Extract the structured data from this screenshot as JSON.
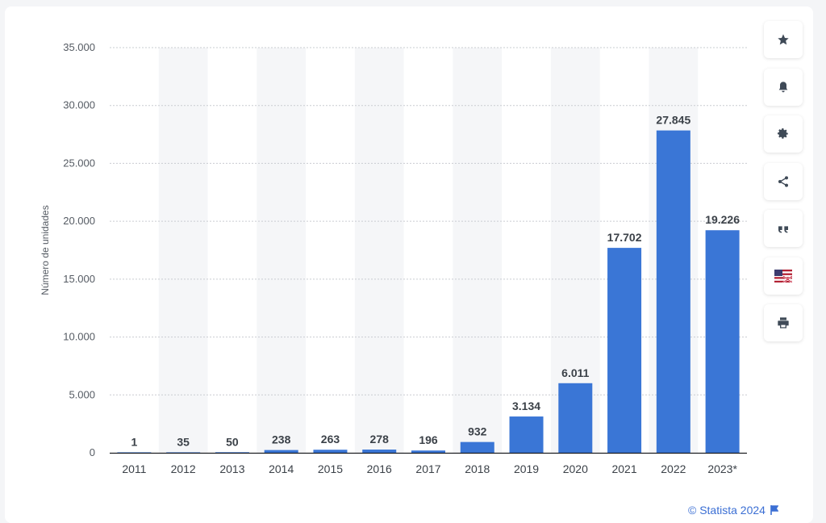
{
  "chart_data": {
    "type": "bar",
    "categories": [
      "2011",
      "2012",
      "2013",
      "2014",
      "2015",
      "2016",
      "2017",
      "2018",
      "2019",
      "2020",
      "2021",
      "2022",
      "2023*"
    ],
    "values": [
      1,
      35,
      50,
      238,
      263,
      278,
      196,
      932,
      3134,
      6011,
      17702,
      27845,
      19226
    ],
    "value_labels": [
      "1",
      "35",
      "50",
      "238",
      "263",
      "278",
      "196",
      "932",
      "3.134",
      "6.011",
      "17.702",
      "27.845",
      "19.226"
    ],
    "ylabel": "Número de unidades",
    "ylim": [
      0,
      35000
    ],
    "yticks": [
      0,
      5000,
      10000,
      15000,
      20000,
      25000,
      30000,
      35000
    ],
    "ytick_labels": [
      "0",
      "5.000",
      "10.000",
      "15.000",
      "20.000",
      "25.000",
      "30.000",
      "35.000"
    ],
    "grid": true,
    "colors": {
      "bar": "#3a76d6",
      "band": "#f5f6f8",
      "grid": "#c9ccd1"
    }
  },
  "toolbar": {
    "icons": [
      "star-icon",
      "bell-icon",
      "gear-icon",
      "share-icon",
      "quote-icon",
      "flag-icon",
      "print-icon"
    ]
  },
  "footer": {
    "text": "© Statista 2024"
  }
}
